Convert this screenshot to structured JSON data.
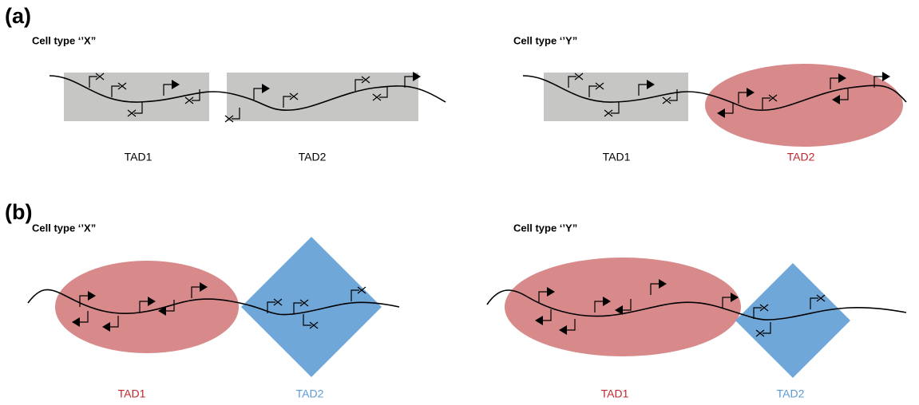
{
  "panels": [
    {
      "label": "(a)",
      "cells": [
        {
          "title": "Cell type ‘’X”",
          "tads": [
            "TAD1",
            "TAD2"
          ]
        },
        {
          "title": "Cell type ‘’Y”",
          "tads": [
            "TAD1",
            "TAD2"
          ]
        }
      ]
    },
    {
      "label": "(b)",
      "cells": [
        {
          "title": "Cell type ‘’X”",
          "tads": [
            "TAD1",
            "TAD2"
          ]
        },
        {
          "title": "Cell type ‘’Y”",
          "tads": [
            "TAD1",
            "TAD2"
          ]
        }
      ]
    }
  ]
}
